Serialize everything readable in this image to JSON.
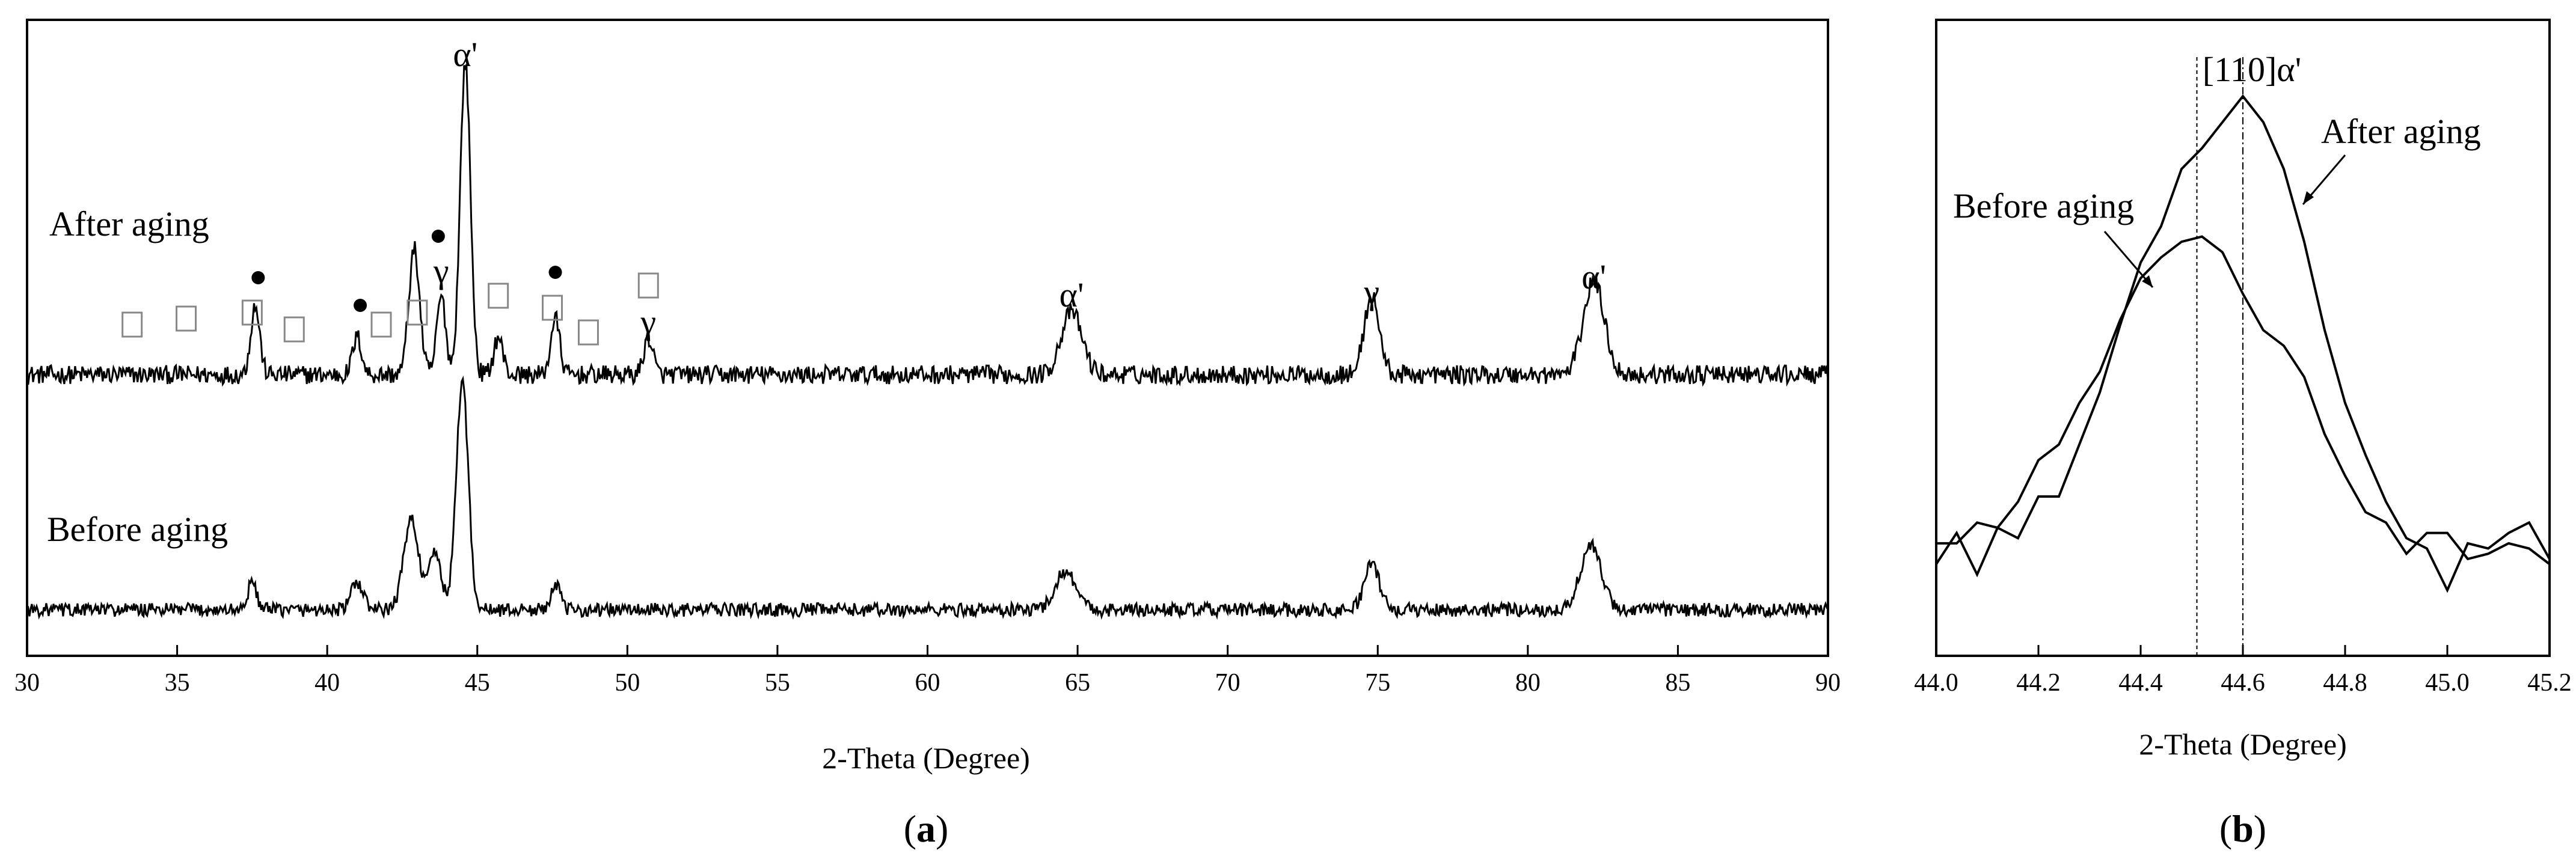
{
  "figure": {
    "panel_a_label": [
      "(",
      "a",
      ")"
    ],
    "panel_b_label": [
      "(",
      "b",
      ")"
    ]
  },
  "legend_symbols": {
    "square": "□",
    "dot": "●"
  },
  "chart_data": [
    {
      "type": "line",
      "panel": "a",
      "title": "",
      "xlabel": "2-Theta (Degree)",
      "ylabel": "",
      "xlim": [
        30,
        90
      ],
      "xticks": [
        30,
        35,
        40,
        45,
        50,
        55,
        60,
        65,
        70,
        75,
        80,
        85,
        90
      ],
      "y_axis": "intensity (arbitrary, unlabeled)",
      "series": [
        {
          "name": "After aging",
          "baseline": 0.08,
          "noise": 0.03,
          "peaks": [
            {
              "x": 37.6,
              "height": 0.22,
              "width": 0.15
            },
            {
              "x": 41.0,
              "height": 0.12,
              "width": 0.15
            },
            {
              "x": 42.9,
              "height": 0.4,
              "width": 0.18
            },
            {
              "x": 43.8,
              "height": 0.25,
              "width": 0.15
            },
            {
              "x": 44.6,
              "height": 1.0,
              "width": 0.17
            },
            {
              "x": 45.7,
              "height": 0.12,
              "width": 0.15
            },
            {
              "x": 47.6,
              "height": 0.18,
              "width": 0.15
            },
            {
              "x": 50.7,
              "height": 0.12,
              "width": 0.15
            },
            {
              "x": 64.8,
              "height": 0.2,
              "width": 0.35
            },
            {
              "x": 74.8,
              "height": 0.25,
              "width": 0.25
            },
            {
              "x": 82.2,
              "height": 0.3,
              "width": 0.35
            }
          ]
        },
        {
          "name": "Before aging",
          "baseline": 0.08,
          "noise": 0.03,
          "peaks": [
            {
              "x": 37.5,
              "height": 0.12,
              "width": 0.15
            },
            {
              "x": 41.0,
              "height": 0.12,
              "width": 0.2
            },
            {
              "x": 42.8,
              "height": 0.4,
              "width": 0.25
            },
            {
              "x": 43.6,
              "height": 0.25,
              "width": 0.2
            },
            {
              "x": 44.5,
              "height": 1.0,
              "width": 0.2
            },
            {
              "x": 47.6,
              "height": 0.12,
              "width": 0.15
            },
            {
              "x": 64.6,
              "height": 0.17,
              "width": 0.35
            },
            {
              "x": 74.8,
              "height": 0.2,
              "width": 0.25
            },
            {
              "x": 82.1,
              "height": 0.28,
              "width": 0.35
            }
          ]
        }
      ],
      "annotations": [
        {
          "text": "α'",
          "x": 44.6,
          "series": "After aging"
        },
        {
          "text": "γ",
          "x": 43.8,
          "series": "After aging"
        },
        {
          "text": "α'",
          "x": 64.8,
          "series": "After aging"
        },
        {
          "text": "γ",
          "x": 74.8,
          "series": "After aging"
        },
        {
          "text": "α'",
          "x": 82.2,
          "series": "After aging"
        },
        {
          "text": "γ",
          "x": 50.7,
          "series": "After aging"
        }
      ],
      "markers": [
        {
          "symbol": "square",
          "x": 33.5
        },
        {
          "symbol": "square",
          "x": 35.3
        },
        {
          "symbol": "square",
          "x": 37.5
        },
        {
          "symbol": "dot",
          "x": 37.7
        },
        {
          "symbol": "square",
          "x": 38.9
        },
        {
          "symbol": "dot",
          "x": 41.1
        },
        {
          "symbol": "square",
          "x": 41.8
        },
        {
          "symbol": "square",
          "x": 43.0
        },
        {
          "symbol": "dot",
          "x": 43.7
        },
        {
          "symbol": "square",
          "x": 45.7
        },
        {
          "symbol": "square",
          "x": 47.5
        },
        {
          "symbol": "dot",
          "x": 47.6
        },
        {
          "symbol": "square",
          "x": 48.7
        },
        {
          "symbol": "square",
          "x": 50.7
        }
      ]
    },
    {
      "type": "line",
      "panel": "b",
      "title": "",
      "xlabel": "2-Theta (Degree)",
      "ylabel": "",
      "xlim": [
        44.0,
        45.2
      ],
      "xticks": [
        44.0,
        44.2,
        44.4,
        44.6,
        44.8,
        45.0,
        45.2
      ],
      "xtick_labels": [
        "44.0",
        "44.2",
        "44.4",
        "44.6",
        "44.8",
        "45.0",
        "45.2"
      ],
      "ylim": [
        0,
        1
      ],
      "annotations": [
        {
          "text": "[110]α'",
          "x": 44.59
        },
        {
          "text": "After aging",
          "series": "After aging"
        },
        {
          "text": "Before aging",
          "series": "Before aging"
        }
      ],
      "vlines": [
        44.51,
        44.6
      ],
      "series": [
        {
          "name": "After aging",
          "points": [
            [
              44.0,
              0.1
            ],
            [
              44.04,
              0.16
            ],
            [
              44.08,
              0.08
            ],
            [
              44.12,
              0.17
            ],
            [
              44.16,
              0.15
            ],
            [
              44.2,
              0.23
            ],
            [
              44.24,
              0.23
            ],
            [
              44.28,
              0.33
            ],
            [
              44.32,
              0.43
            ],
            [
              44.36,
              0.56
            ],
            [
              44.4,
              0.68
            ],
            [
              44.44,
              0.75
            ],
            [
              44.48,
              0.86
            ],
            [
              44.52,
              0.9
            ],
            [
              44.56,
              0.95
            ],
            [
              44.6,
              1.0
            ],
            [
              44.64,
              0.95
            ],
            [
              44.68,
              0.86
            ],
            [
              44.72,
              0.72
            ],
            [
              44.76,
              0.55
            ],
            [
              44.8,
              0.41
            ],
            [
              44.84,
              0.31
            ],
            [
              44.88,
              0.22
            ],
            [
              44.92,
              0.15
            ],
            [
              44.96,
              0.13
            ],
            [
              45.0,
              0.05
            ],
            [
              45.04,
              0.14
            ],
            [
              45.08,
              0.13
            ],
            [
              45.12,
              0.16
            ],
            [
              45.16,
              0.18
            ],
            [
              45.2,
              0.11
            ]
          ]
        },
        {
          "name": "Before aging",
          "points": [
            [
              44.0,
              0.14
            ],
            [
              44.04,
              0.14
            ],
            [
              44.08,
              0.18
            ],
            [
              44.12,
              0.17
            ],
            [
              44.16,
              0.22
            ],
            [
              44.2,
              0.3
            ],
            [
              44.24,
              0.33
            ],
            [
              44.28,
              0.41
            ],
            [
              44.32,
              0.47
            ],
            [
              44.36,
              0.57
            ],
            [
              44.4,
              0.65
            ],
            [
              44.44,
              0.69
            ],
            [
              44.48,
              0.72
            ],
            [
              44.52,
              0.73
            ],
            [
              44.56,
              0.7
            ],
            [
              44.6,
              0.62
            ],
            [
              44.64,
              0.55
            ],
            [
              44.68,
              0.52
            ],
            [
              44.72,
              0.46
            ],
            [
              44.76,
              0.35
            ],
            [
              44.8,
              0.27
            ],
            [
              44.84,
              0.2
            ],
            [
              44.88,
              0.18
            ],
            [
              44.92,
              0.12
            ],
            [
              44.96,
              0.16
            ],
            [
              45.0,
              0.16
            ],
            [
              45.04,
              0.11
            ],
            [
              45.08,
              0.12
            ],
            [
              45.12,
              0.14
            ],
            [
              45.16,
              0.13
            ],
            [
              45.2,
              0.1
            ]
          ]
        }
      ]
    }
  ]
}
